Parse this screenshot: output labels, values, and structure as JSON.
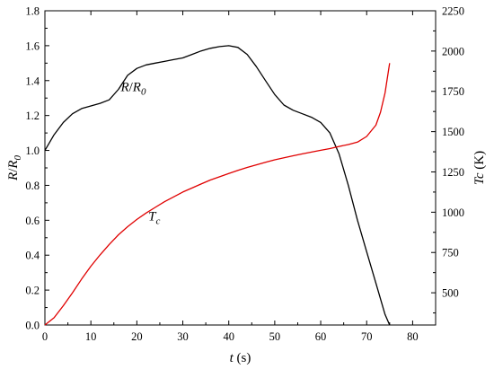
{
  "chart_data": {
    "type": "line",
    "xlabel": {
      "var": "t",
      "unit": " (s)"
    },
    "ylabel_left": {
      "num": "R",
      "slash": "/",
      "den": "R",
      "den_sub": "0"
    },
    "ylabel_right": {
      "var": "Tc",
      "unit": " (K)"
    },
    "xlim": [
      0,
      85
    ],
    "ylim_left": [
      0,
      1.8
    ],
    "ylim_right": [
      300,
      2250
    ],
    "x_ticks": [
      0,
      10,
      20,
      30,
      40,
      50,
      60,
      70,
      80
    ],
    "x_tick_labels": [
      "0",
      "10",
      "20",
      "30",
      "40",
      "50",
      "60",
      "70",
      "80"
    ],
    "y_left_ticks": [
      0,
      0.2,
      0.4,
      0.6,
      0.8,
      1.0,
      1.2,
      1.4,
      1.6,
      1.8
    ],
    "y_left_tick_labels": [
      "0.0",
      "0.2",
      "0.4",
      "0.6",
      "0.8",
      "1.0",
      "1.2",
      "1.4",
      "1.6",
      "1.8"
    ],
    "y_right_ticks": [
      500,
      750,
      1000,
      1250,
      1500,
      1750,
      2000,
      2250
    ],
    "y_right_tick_labels": [
      "500",
      "750",
      "1000",
      "1250",
      "1500",
      "1750",
      "2000",
      "2250"
    ],
    "grid": false,
    "legend": "none",
    "series": [
      {
        "axis": "left",
        "color": "#000000",
        "label": {
          "num": "R",
          "slash": "/",
          "den": "R",
          "den_sub": "0"
        },
        "label_at": [
          16.5,
          1.34
        ],
        "x": [
          0,
          2,
          4,
          6,
          8,
          10,
          12,
          14,
          16,
          18,
          20,
          22,
          24,
          26,
          28,
          30,
          32,
          34,
          36,
          38,
          40,
          42,
          44,
          46,
          48,
          50,
          52,
          54,
          56,
          58,
          60,
          62,
          64,
          66,
          68,
          70,
          72,
          74,
          75
        ],
        "y": [
          1.0,
          1.09,
          1.16,
          1.21,
          1.24,
          1.255,
          1.27,
          1.29,
          1.35,
          1.43,
          1.47,
          1.49,
          1.5,
          1.51,
          1.52,
          1.53,
          1.55,
          1.57,
          1.585,
          1.595,
          1.6,
          1.59,
          1.55,
          1.48,
          1.4,
          1.32,
          1.26,
          1.23,
          1.21,
          1.19,
          1.16,
          1.1,
          0.98,
          0.8,
          0.6,
          0.42,
          0.24,
          0.06,
          0.0
        ]
      },
      {
        "axis": "right",
        "color": "#e00000",
        "label": {
          "var": "T",
          "sub": "c"
        },
        "label_at": [
          22.5,
          0.6
        ],
        "x": [
          0,
          2,
          4,
          6,
          8,
          10,
          12,
          14,
          16,
          18,
          20,
          22,
          24,
          26,
          28,
          30,
          32,
          34,
          36,
          38,
          40,
          42,
          44,
          46,
          48,
          50,
          52,
          54,
          56,
          58,
          60,
          62,
          64,
          66,
          68,
          70,
          72,
          73,
          74,
          75
        ],
        "y": [
          300,
          345,
          420,
          500,
          585,
          665,
          735,
          800,
          860,
          910,
          955,
          995,
          1030,
          1065,
          1095,
          1125,
          1150,
          1175,
          1200,
          1220,
          1240,
          1260,
          1278,
          1294,
          1310,
          1325,
          1338,
          1350,
          1362,
          1373,
          1384,
          1395,
          1408,
          1420,
          1435,
          1470,
          1540,
          1620,
          1740,
          1925
        ]
      }
    ]
  }
}
